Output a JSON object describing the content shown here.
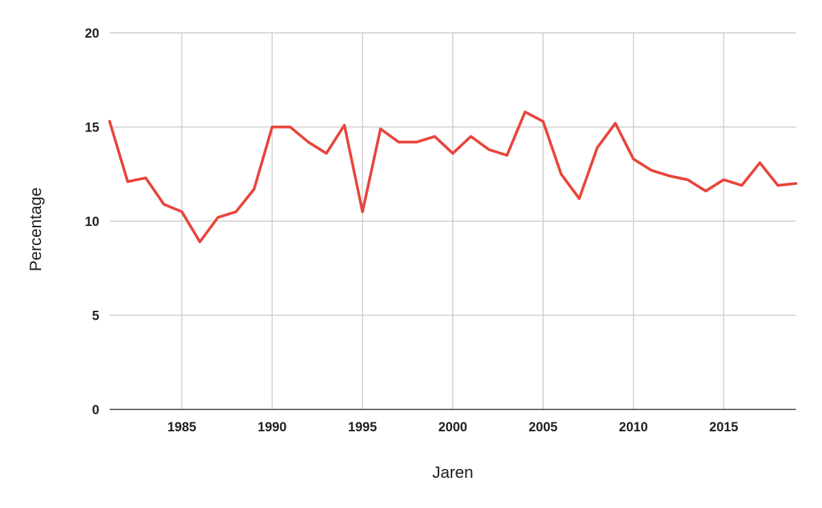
{
  "chart_data": {
    "type": "line",
    "title": "",
    "xlabel": "Jaren",
    "ylabel": "Percentage",
    "xlim": [
      1981,
      2019
    ],
    "ylim": [
      0,
      20
    ],
    "x_ticks": [
      1985,
      1990,
      1995,
      2000,
      2005,
      2010,
      2015
    ],
    "y_ticks": [
      0,
      5,
      10,
      15,
      20
    ],
    "grid": true,
    "legend": "none",
    "series": [
      {
        "color": "#e8453c",
        "x": [
          1981,
          1982,
          1983,
          1984,
          1985,
          1986,
          1987,
          1988,
          1989,
          1990,
          1991,
          1992,
          1993,
          1994,
          1995,
          1996,
          1997,
          1998,
          1999,
          2000,
          2001,
          2002,
          2003,
          2004,
          2005,
          2006,
          2007,
          2008,
          2009,
          2010,
          2011,
          2012,
          2013,
          2014,
          2015,
          2016,
          2017,
          2018,
          2019
        ],
        "values": [
          15.3,
          12.1,
          12.3,
          10.9,
          10.5,
          8.9,
          10.2,
          10.5,
          11.7,
          15.0,
          15.0,
          14.2,
          13.6,
          15.1,
          10.5,
          14.9,
          14.2,
          14.2,
          14.5,
          13.6,
          14.5,
          13.8,
          13.5,
          15.8,
          15.3,
          12.5,
          11.2,
          13.9,
          15.2,
          13.3,
          12.7,
          12.4,
          12.2,
          11.6,
          12.2,
          11.9,
          13.1,
          11.9,
          12.0
        ]
      }
    ]
  }
}
